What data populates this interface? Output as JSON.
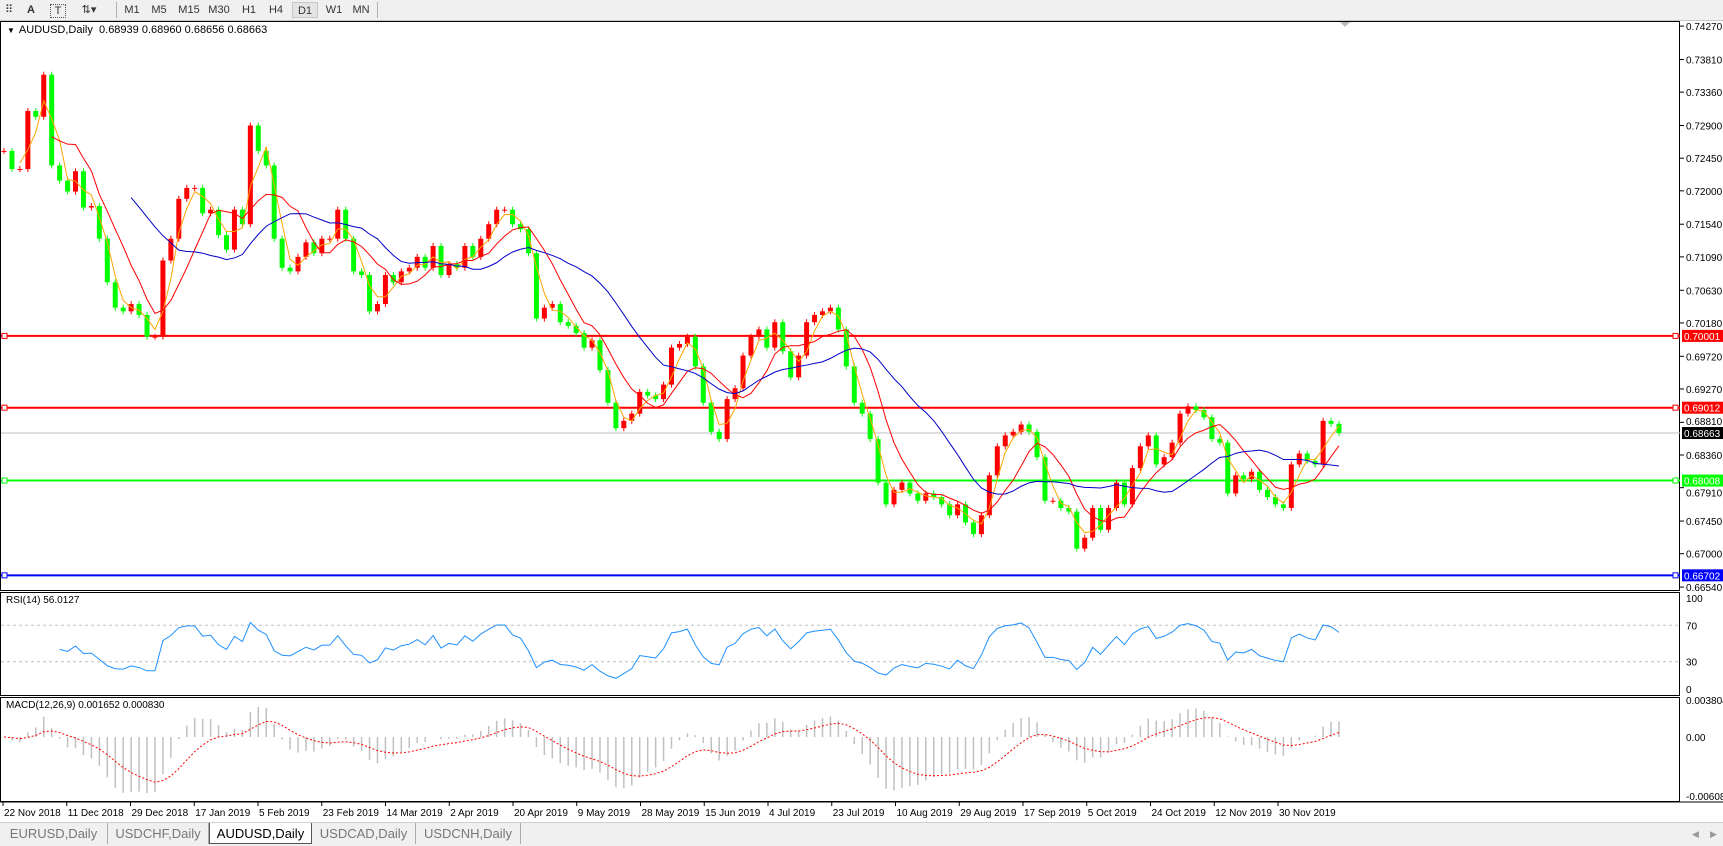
{
  "toolbar": {
    "tools": [
      {
        "name": "period-separator-icon",
        "glyph": "⠿"
      },
      {
        "name": "text-tool-icon",
        "glyph": "A"
      },
      {
        "name": "text-label-tool-icon",
        "glyph": "T"
      },
      {
        "name": "arrows-tool-icon",
        "glyph": "⇅▾"
      }
    ],
    "timeframes": [
      "M1",
      "M5",
      "M15",
      "M30",
      "H1",
      "H4",
      "D1",
      "W1",
      "MN"
    ],
    "active_timeframe": "D1"
  },
  "chart": {
    "symbol": "AUDUSD,Daily",
    "ohlc": "0.68939 0.68960 0.68656 0.68663"
  },
  "price_axis": {
    "labels": [
      "0.74270",
      "0.73810",
      "0.73360",
      "0.72900",
      "0.72450",
      "0.72000",
      "0.71540",
      "0.71090",
      "0.70630",
      "0.70180",
      "0.69720",
      "0.69270",
      "0.68810",
      "0.68360",
      "0.67910",
      "0.67450",
      "0.67000",
      "0.66540"
    ]
  },
  "levels": [
    {
      "price": "0.70001",
      "color": "#ff0000",
      "text_color": "#ffffff"
    },
    {
      "price": "0.69012",
      "color": "#ff0000",
      "text_color": "#ffffff"
    },
    {
      "price": "0.68008",
      "color": "#00ff00",
      "text_color": "#ffffff"
    },
    {
      "price": "0.66702",
      "color": "#0000ff",
      "text_color": "#ffffff"
    }
  ],
  "current_price": {
    "price": "0.68663",
    "color": "#000000",
    "line_color": "#c0c0c0"
  },
  "rsi": {
    "label": "RSI(14) 56.0127",
    "axis_labels": [
      "100",
      "70",
      "30",
      "0"
    ],
    "color": "#1e90ff"
  },
  "macd": {
    "label": "MACD(12,26,9) 0.001652 0.000830",
    "axis_labels": [
      "0.003804",
      "0.00",
      "-0.00608"
    ],
    "histogram_color": "#c0c0c0",
    "signal_color": "#ff0000"
  },
  "date_axis": [
    "22 Nov 2018",
    "11 Dec 2018",
    "29 Dec 2018",
    "17 Jan 2019",
    "5 Feb 2019",
    "23 Feb 2019",
    "14 Mar 2019",
    "2 Apr 2019",
    "20 Apr 2019",
    "9 May 2019",
    "28 May 2019",
    "15 Jun 2019",
    "4 Jul 2019",
    "23 Jul 2019",
    "10 Aug 2019",
    "29 Aug 2019",
    "17 Sep 2019",
    "5 Oct 2019",
    "24 Oct 2019",
    "12 Nov 2019",
    "30 Nov 2019"
  ],
  "tabs": [
    {
      "label": "EURUSD,Daily",
      "active": false
    },
    {
      "label": "USDCHF,Daily",
      "active": false
    },
    {
      "label": "AUDUSD,Daily",
      "active": true
    },
    {
      "label": "USDCAD,Daily",
      "active": false
    },
    {
      "label": "USDCNH,Daily",
      "active": false
    }
  ],
  "chart_data": {
    "type": "candlestick",
    "ylim": [
      0.665,
      0.7434
    ],
    "up_color": "#ff0000",
    "down_color": "#00ff00",
    "ma_colors": [
      "#ffa500",
      "#ff0000",
      "#0000c8"
    ],
    "closes": [
      0.7255,
      0.723,
      0.723,
      0.731,
      0.7302,
      0.736,
      0.7235,
      0.7214,
      0.7199,
      0.7227,
      0.7177,
      0.7179,
      0.7134,
      0.7074,
      0.7039,
      0.7034,
      0.7044,
      0.7029,
      0.6999,
      0.6999,
      0.7104,
      0.7134,
      0.7189,
      0.7204,
      0.7204,
      0.7169,
      0.7174,
      0.7139,
      0.7119,
      0.7174,
      0.7154,
      0.729,
      0.7255,
      0.7235,
      0.7134,
      0.7094,
      0.7089,
      0.7109,
      0.7129,
      0.7114,
      0.7134,
      0.7134,
      0.7174,
      0.7134,
      0.7089,
      0.7084,
      0.7034,
      0.7044,
      0.7084,
      0.7074,
      0.7089,
      0.7094,
      0.7109,
      0.7094,
      0.7124,
      0.7084,
      0.7099,
      0.7094,
      0.7124,
      0.7109,
      0.7134,
      0.7154,
      0.7174,
      0.7174,
      0.7154,
      0.7147,
      0.7114,
      0.7024,
      0.7039,
      0.7044,
      0.7019,
      0.7014,
      0.7004,
      0.6984,
      0.6994,
      0.6953,
      0.6908,
      0.6873,
      0.6883,
      0.6893,
      0.6923,
      0.6918,
      0.6913,
      0.6933,
      0.6984,
      0.6989,
      0.6999,
      0.6958,
      0.6908,
      0.6868,
      0.6858,
      0.6913,
      0.6928,
      0.6973,
      0.6999,
      0.7009,
      0.6984,
      0.7019,
      0.6979,
      0.6943,
      0.6973,
      0.7019,
      0.7029,
      0.7034,
      0.7039,
      0.7009,
      0.6958,
      0.6908,
      0.6893,
      0.6858,
      0.6798,
      0.6768,
      0.6788,
      0.6798,
      0.6783,
      0.6773,
      0.6783,
      0.6778,
      0.6768,
      0.6753,
      0.6768,
      0.6743,
      0.6727,
      0.6753,
      0.6808,
      0.6848,
      0.6863,
      0.6868,
      0.6878,
      0.6868,
      0.6833,
      0.6773,
      0.6773,
      0.6763,
      0.6758,
      0.6707,
      0.6722,
      0.6763,
      0.6733,
      0.6763,
      0.6798,
      0.6768,
      0.6818,
      0.6848,
      0.6863,
      0.6823,
      0.6833,
      0.6853,
      0.6893,
      0.6903,
      0.6898,
      0.6888,
      0.6858,
      0.6853,
      0.6783,
      0.6808,
      0.6803,
      0.6813,
      0.6788,
      0.6778,
      0.6768,
      0.6763,
      0.6823,
      0.6838,
      0.6828,
      0.6823,
      0.6883,
      0.6879,
      0.68663
    ]
  }
}
